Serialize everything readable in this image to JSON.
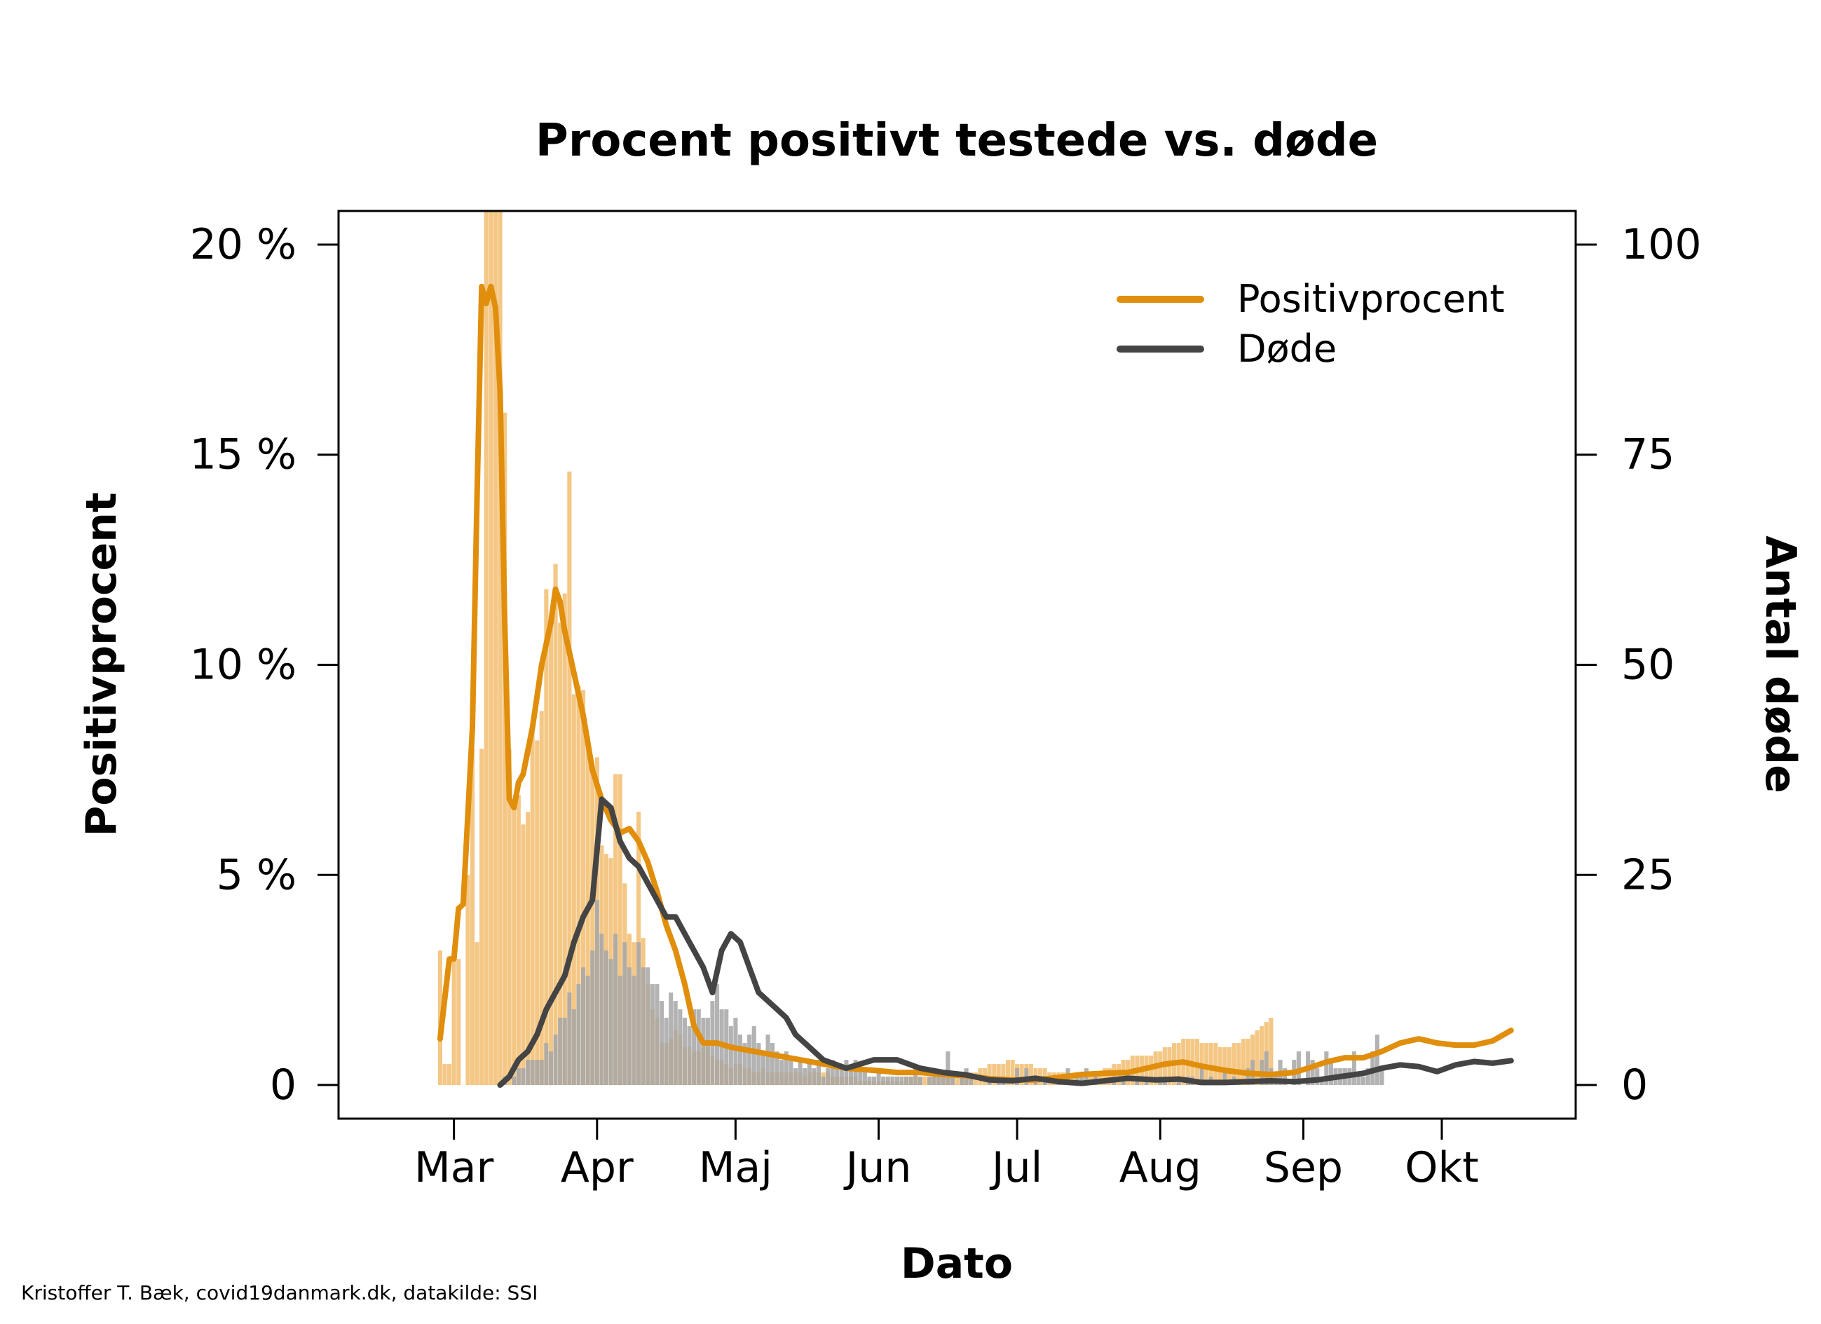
{
  "credit": "Kristoffer T. Bæk, covid19danmark.dk, datakilde: SSI",
  "chart_data": {
    "type": "bar+line",
    "title": "Procent positivt testede vs. døde",
    "xlabel": "Dato",
    "ylabel_left": "Positivprocent",
    "ylabel_right": "Antal døde",
    "x_ticks": [
      "Mar",
      "Apr",
      "Maj",
      "Jun",
      "Jul",
      "Aug",
      "Sep",
      "Okt"
    ],
    "x_tick_dates": [
      "2020-03-01",
      "2020-04-01",
      "2020-05-01",
      "2020-06-01",
      "2020-07-01",
      "2020-08-01",
      "2020-09-01",
      "2020-10-01"
    ],
    "y_left_ticks": [
      "0",
      "5 %",
      "10 %",
      "15 %",
      "20 %"
    ],
    "y_left_tick_values": [
      0,
      5,
      10,
      15,
      20
    ],
    "y_right_ticks": [
      "0",
      "25",
      "50",
      "75",
      "100"
    ],
    "y_right_tick_values": [
      0,
      25,
      50,
      75,
      100
    ],
    "x_range": [
      "2020-02-05",
      "2020-10-30"
    ],
    "y_left_range": [
      -0.8,
      20.8
    ],
    "y_right_range": [
      -4,
      104
    ],
    "legend": {
      "position": "top-right",
      "entries": [
        {
          "label": "Positivprocent",
          "color": "#E08E0B"
        },
        {
          "label": "Døde",
          "color": "#444444"
        }
      ]
    },
    "colors": {
      "positiv_bar": "#F3C47E",
      "positiv_line": "#E08E0B",
      "dode_bar": "#A6A6A6",
      "dode_line": "#444444"
    },
    "series": [
      {
        "name": "Positivprocent",
        "axis": "left",
        "bar_start": "2020-02-27",
        "bars": [
          3.2,
          0.5,
          0.5,
          3.0,
          3.0,
          0.0,
          5.0,
          8.0,
          3.4,
          8.0,
          20.8,
          20.8,
          20.8,
          20.8,
          16.0,
          8.0,
          6.8,
          6.9,
          6.2,
          6.5,
          8.6,
          8.2,
          8.9,
          11.8,
          11.2,
          12.4,
          11.0,
          11.7,
          14.6,
          9.3,
          9.5,
          9.4,
          8.3,
          7.6,
          7.8,
          5.7,
          5.5,
          5.4,
          7.4,
          7.4,
          4.8,
          3.6,
          3.4,
          6.5,
          3.5,
          2.4,
          1.8,
          1.6,
          1.0,
          1.0,
          1.1,
          1.3,
          1.2,
          0.9,
          0.9,
          0.8,
          0.8,
          0.9,
          0.9,
          0.7,
          0.6,
          0.6,
          0.5,
          0.4,
          0.5,
          0.5,
          0.4,
          0.4,
          0.3,
          0.3,
          0.4,
          0.3,
          0.3,
          0.3,
          0.3,
          0.3,
          0.3,
          0.3,
          0.3,
          0.2,
          0.3,
          0.3,
          0.3,
          0.3,
          0.3,
          0.2,
          0.2,
          0.2,
          0.2,
          0.2,
          0.2,
          0.1,
          0.1,
          0.1,
          0.1,
          0.1,
          0.1,
          0.1,
          0.1,
          0.1,
          0.1,
          0.2,
          0.2,
          0.2,
          0.2,
          0.2,
          0.2,
          0.3,
          0.3,
          0.3,
          0.3,
          0.3,
          0.3,
          0.3,
          0.3,
          0.3,
          0.3,
          0.4,
          0.4,
          0.5,
          0.5,
          0.5,
          0.5,
          0.6,
          0.6,
          0.5,
          0.5,
          0.5,
          0.5,
          0.4,
          0.4,
          0.4,
          0.3,
          0.3,
          0.3,
          0.3,
          0.3,
          0.2,
          0.2,
          0.2,
          0.2,
          0.3,
          0.3,
          0.3,
          0.4,
          0.4,
          0.5,
          0.5,
          0.6,
          0.6,
          0.7,
          0.7,
          0.7,
          0.7,
          0.7,
          0.8,
          0.8,
          0.9,
          0.9,
          1.0,
          1.0,
          1.1,
          1.1,
          1.1,
          1.1,
          1.0,
          1.0,
          1.0,
          1.0,
          0.9,
          0.9,
          0.9,
          1.0,
          1.0,
          1.1,
          1.1,
          1.2,
          1.3,
          1.4,
          1.5,
          1.6
        ],
        "line": [
          [
            "2020-02-27",
            1.1
          ],
          [
            "2020-02-29",
            3.0
          ],
          [
            "2020-03-01",
            3.0
          ],
          [
            "2020-03-02",
            4.2
          ],
          [
            "2020-03-03",
            4.3
          ],
          [
            "2020-03-05",
            8.5
          ],
          [
            "2020-03-06",
            14.0
          ],
          [
            "2020-03-07",
            19.0
          ],
          [
            "2020-03-08",
            18.6
          ],
          [
            "2020-03-09",
            19.0
          ],
          [
            "2020-03-10",
            18.5
          ],
          [
            "2020-03-11",
            16.5
          ],
          [
            "2020-03-12",
            11.0
          ],
          [
            "2020-03-13",
            6.8
          ],
          [
            "2020-03-14",
            6.6
          ],
          [
            "2020-03-15",
            7.2
          ],
          [
            "2020-03-16",
            7.4
          ],
          [
            "2020-03-18",
            8.5
          ],
          [
            "2020-03-20",
            10.0
          ],
          [
            "2020-03-22",
            11.0
          ],
          [
            "2020-03-23",
            11.8
          ],
          [
            "2020-03-24",
            11.5
          ],
          [
            "2020-03-25",
            10.8
          ],
          [
            "2020-03-27",
            9.8
          ],
          [
            "2020-03-29",
            8.8
          ],
          [
            "2020-03-31",
            7.5
          ],
          [
            "2020-04-02",
            6.8
          ],
          [
            "2020-04-04",
            6.3
          ],
          [
            "2020-04-06",
            6.0
          ],
          [
            "2020-04-08",
            6.1
          ],
          [
            "2020-04-10",
            5.8
          ],
          [
            "2020-04-12",
            5.3
          ],
          [
            "2020-04-14",
            4.6
          ],
          [
            "2020-04-16",
            3.8
          ],
          [
            "2020-04-18",
            3.2
          ],
          [
            "2020-04-20",
            2.4
          ],
          [
            "2020-04-22",
            1.4
          ],
          [
            "2020-04-24",
            1.0
          ],
          [
            "2020-04-27",
            1.0
          ],
          [
            "2020-04-30",
            0.9
          ],
          [
            "2020-05-05",
            0.8
          ],
          [
            "2020-05-10",
            0.7
          ],
          [
            "2020-05-15",
            0.6
          ],
          [
            "2020-05-20",
            0.5
          ],
          [
            "2020-05-25",
            0.4
          ],
          [
            "2020-05-31",
            0.35
          ],
          [
            "2020-06-05",
            0.3
          ],
          [
            "2020-06-10",
            0.3
          ],
          [
            "2020-06-15",
            0.25
          ],
          [
            "2020-06-20",
            0.22
          ],
          [
            "2020-06-25",
            0.15
          ],
          [
            "2020-06-30",
            0.12
          ],
          [
            "2020-07-05",
            0.12
          ],
          [
            "2020-07-10",
            0.18
          ],
          [
            "2020-07-15",
            0.25
          ],
          [
            "2020-07-20",
            0.28
          ],
          [
            "2020-07-25",
            0.3
          ],
          [
            "2020-07-29",
            0.4
          ],
          [
            "2020-08-02",
            0.5
          ],
          [
            "2020-08-06",
            0.55
          ],
          [
            "2020-08-10",
            0.45
          ],
          [
            "2020-08-15",
            0.35
          ],
          [
            "2020-08-20",
            0.28
          ],
          [
            "2020-08-25",
            0.25
          ],
          [
            "2020-08-30",
            0.3
          ],
          [
            "2020-09-02",
            0.4
          ],
          [
            "2020-09-06",
            0.55
          ],
          [
            "2020-09-10",
            0.65
          ],
          [
            "2020-09-14",
            0.65
          ],
          [
            "2020-09-18",
            0.8
          ],
          [
            "2020-09-22",
            1.0
          ],
          [
            "2020-09-26",
            1.1
          ],
          [
            "2020-09-30",
            1.0
          ],
          [
            "2020-10-04",
            0.95
          ],
          [
            "2020-10-08",
            0.95
          ],
          [
            "2020-10-12",
            1.05
          ],
          [
            "2020-10-16",
            1.3
          ]
        ]
      },
      {
        "name": "Døde",
        "axis": "right",
        "bar_start": "2020-03-11",
        "bars": [
          0,
          1,
          0,
          1,
          2,
          2,
          3,
          3,
          3,
          3,
          5,
          4,
          6,
          8,
          8,
          11,
          9,
          12,
          14,
          13,
          16,
          22,
          18,
          16,
          15,
          18,
          13,
          17,
          14,
          13,
          17,
          14,
          14,
          12,
          12,
          10,
          8,
          11,
          10,
          9,
          8,
          7,
          9,
          9,
          8,
          8,
          10,
          12,
          9,
          9,
          7,
          8,
          6,
          5,
          6,
          7,
          5,
          4,
          6,
          5,
          4,
          3,
          4,
          3,
          2,
          3,
          2,
          3,
          2,
          3,
          1,
          2,
          3,
          2,
          2,
          3,
          2,
          3,
          2,
          2,
          1,
          1,
          2,
          1,
          1,
          1,
          1,
          1,
          1,
          1,
          2,
          1,
          0,
          1,
          1,
          1,
          1,
          4,
          1,
          0,
          1,
          2,
          1,
          0,
          0,
          0,
          1,
          0,
          1,
          1,
          0,
          0,
          2,
          0,
          2,
          0,
          1,
          0,
          1,
          0,
          0,
          1,
          0,
          2,
          0,
          1,
          1,
          2,
          0,
          1,
          0,
          0,
          0,
          1,
          0,
          1,
          0,
          0,
          1,
          0,
          1,
          0,
          0,
          1,
          1,
          0,
          0,
          1,
          0,
          1,
          1,
          0,
          2,
          0,
          1,
          0,
          0,
          2,
          0,
          1,
          0,
          0,
          2,
          3,
          0,
          3,
          4,
          2,
          1,
          3,
          2,
          0,
          3,
          4,
          0,
          4,
          3,
          2,
          1,
          4,
          3,
          2,
          2,
          2,
          2,
          4,
          1,
          1,
          2,
          4,
          6,
          2
        ],
        "line": [
          [
            "2020-03-11",
            0
          ],
          [
            "2020-03-13",
            1
          ],
          [
            "2020-03-15",
            3
          ],
          [
            "2020-03-17",
            4
          ],
          [
            "2020-03-19",
            6
          ],
          [
            "2020-03-21",
            9
          ],
          [
            "2020-03-23",
            11
          ],
          [
            "2020-03-25",
            13
          ],
          [
            "2020-03-27",
            17
          ],
          [
            "2020-03-29",
            20
          ],
          [
            "2020-03-31",
            22
          ],
          [
            "2020-04-02",
            34
          ],
          [
            "2020-04-04",
            33
          ],
          [
            "2020-04-06",
            29
          ],
          [
            "2020-04-08",
            27
          ],
          [
            "2020-04-10",
            26
          ],
          [
            "2020-04-12",
            24
          ],
          [
            "2020-04-14",
            22
          ],
          [
            "2020-04-16",
            20
          ],
          [
            "2020-04-18",
            20
          ],
          [
            "2020-04-20",
            18
          ],
          [
            "2020-04-22",
            16
          ],
          [
            "2020-04-24",
            14
          ],
          [
            "2020-04-26",
            11
          ],
          [
            "2020-04-28",
            16
          ],
          [
            "2020-04-30",
            18
          ],
          [
            "2020-05-02",
            17
          ],
          [
            "2020-05-04",
            14
          ],
          [
            "2020-05-06",
            11
          ],
          [
            "2020-05-08",
            10
          ],
          [
            "2020-05-10",
            9
          ],
          [
            "2020-05-12",
            8
          ],
          [
            "2020-05-14",
            6
          ],
          [
            "2020-05-16",
            5
          ],
          [
            "2020-05-20",
            3
          ],
          [
            "2020-05-25",
            2
          ],
          [
            "2020-05-31",
            3
          ],
          [
            "2020-06-05",
            3
          ],
          [
            "2020-06-10",
            2
          ],
          [
            "2020-06-15",
            1.5
          ],
          [
            "2020-06-20",
            1.2
          ],
          [
            "2020-06-25",
            0.6
          ],
          [
            "2020-06-30",
            0.5
          ],
          [
            "2020-07-05",
            0.8
          ],
          [
            "2020-07-10",
            0.4
          ],
          [
            "2020-07-15",
            0.2
          ],
          [
            "2020-07-20",
            0.5
          ],
          [
            "2020-07-25",
            0.8
          ],
          [
            "2020-07-31",
            0.6
          ],
          [
            "2020-08-05",
            0.7
          ],
          [
            "2020-08-10",
            0.3
          ],
          [
            "2020-08-15",
            0.3
          ],
          [
            "2020-08-20",
            0.4
          ],
          [
            "2020-08-25",
            0.5
          ],
          [
            "2020-08-30",
            0.4
          ],
          [
            "2020-09-04",
            0.6
          ],
          [
            "2020-09-09",
            1.0
          ],
          [
            "2020-09-14",
            1.4
          ],
          [
            "2020-09-18",
            2.0
          ],
          [
            "2020-09-22",
            2.4
          ],
          [
            "2020-09-26",
            2.2
          ],
          [
            "2020-09-30",
            1.6
          ],
          [
            "2020-10-04",
            2.4
          ],
          [
            "2020-10-08",
            2.8
          ],
          [
            "2020-10-12",
            2.6
          ],
          [
            "2020-10-16",
            2.9
          ]
        ]
      }
    ]
  }
}
